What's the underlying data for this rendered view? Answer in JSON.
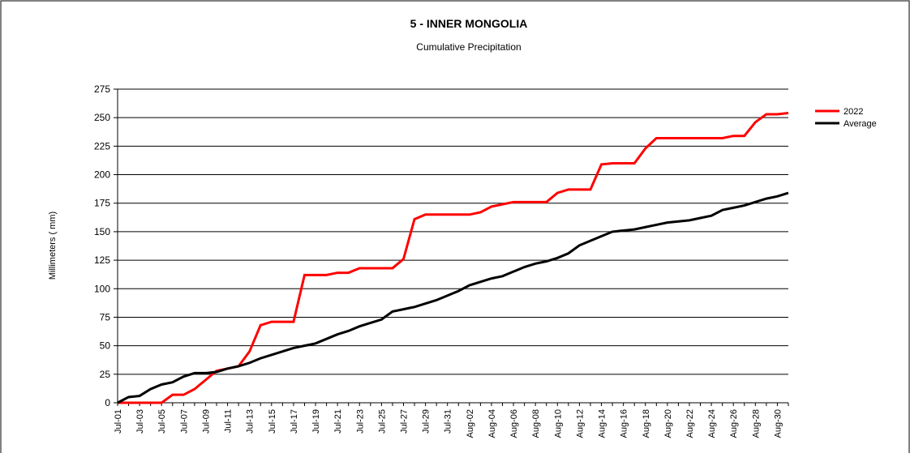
{
  "chart_data": {
    "type": "line",
    "title": "5 - INNER MONGOLIA",
    "subtitle": "Cumulative Precipitation",
    "y_label": "Millimeters ( mm)",
    "categories": [
      "Jul-01",
      null,
      "Jul-03",
      null,
      "Jul-05",
      null,
      "Jul-07",
      null,
      "Jul-09",
      null,
      "Jul-11",
      null,
      "Jul-13",
      null,
      "Jul-15",
      null,
      "Jul-17",
      null,
      "Jul-19",
      null,
      "Jul-21",
      null,
      "Jul-23",
      null,
      "Jul-25",
      null,
      "Jul-27",
      null,
      "Jul-29",
      null,
      "Jul-31",
      null,
      "Aug-02",
      null,
      "Aug-04",
      null,
      "Aug-06",
      null,
      "Aug-08",
      null,
      "Aug-10",
      null,
      "Aug-12",
      null,
      "Aug-14",
      null,
      "Aug-16",
      null,
      "Aug-18",
      null,
      "Aug-20",
      null,
      "Aug-22",
      null,
      "Aug-24",
      null,
      "Aug-26",
      null,
      "Aug-28",
      null,
      "Aug-30",
      null
    ],
    "series": [
      {
        "name": "2022",
        "color": "#ff0000",
        "values": [
          0,
          0,
          0,
          0,
          0,
          7,
          7,
          12,
          20,
          28,
          30,
          32,
          45,
          68,
          71,
          71,
          71,
          112,
          112,
          112,
          114,
          114,
          118,
          118,
          118,
          118,
          126,
          161,
          165,
          165,
          165,
          165,
          165,
          167,
          172,
          174,
          176,
          176,
          176,
          176,
          184,
          187,
          187,
          187,
          209,
          210,
          210,
          210,
          223,
          232,
          232,
          232,
          232,
          232,
          232,
          232,
          234,
          234,
          246,
          253,
          253,
          254
        ]
      },
      {
        "name": "Average",
        "color": "#000000",
        "values": [
          0,
          5,
          6,
          12,
          16,
          18,
          23,
          26,
          26,
          27,
          30,
          32,
          35,
          39,
          42,
          45,
          48,
          50,
          52,
          56,
          60,
          63,
          67,
          70,
          73,
          80,
          82,
          84,
          87,
          90,
          94,
          98,
          103,
          106,
          109,
          111,
          115,
          119,
          122,
          124,
          127,
          131,
          138,
          142,
          146,
          150,
          151,
          152,
          154,
          156,
          158,
          159,
          160,
          162,
          164,
          169,
          171,
          173,
          176,
          179,
          181,
          184
        ]
      }
    ],
    "ylim": [
      0,
      275
    ],
    "yticks": [
      0,
      25,
      50,
      75,
      100,
      125,
      150,
      175,
      200,
      225,
      250,
      275
    ],
    "grid": true,
    "legend": "top-right"
  }
}
